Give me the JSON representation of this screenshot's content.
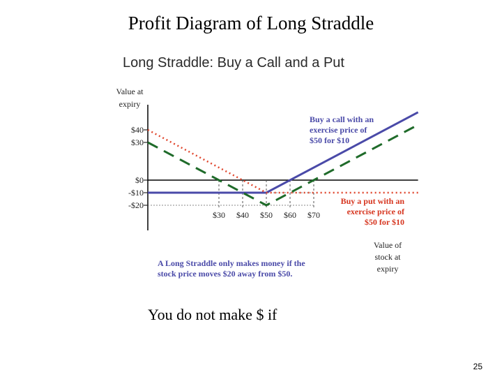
{
  "slide": {
    "title": "Profit Diagram of Long Straddle",
    "footer_text": "You do not make $ if",
    "page_number": "25"
  },
  "chart_data": {
    "type": "line",
    "title": "Long Straddle: Buy a Call and a Put",
    "ylabel": "Value at expiry",
    "xlabel": "Value of stock at expiry",
    "y_ticks": [
      {
        "value": 40,
        "label": "$40"
      },
      {
        "value": 30,
        "label": "$30"
      },
      {
        "value": 0,
        "label": "$0"
      },
      {
        "value": -10,
        "label": "-$10"
      },
      {
        "value": -20,
        "label": "-$20"
      }
    ],
    "x_ticks": [
      {
        "value": 30,
        "label": "$30"
      },
      {
        "value": 40,
        "label": "$40"
      },
      {
        "value": 50,
        "label": "$50"
      },
      {
        "value": 60,
        "label": "$60"
      },
      {
        "value": 70,
        "label": "$70"
      }
    ],
    "xlim": [
      0,
      114
    ],
    "ylim": [
      -40,
      60
    ],
    "series": [
      {
        "id": "call",
        "color": "#4a4aa8",
        "style": "solid",
        "points": [
          [
            0,
            -10
          ],
          [
            50,
            -10
          ],
          [
            114,
            54
          ]
        ]
      },
      {
        "id": "put",
        "color": "#e0472e",
        "style": "dotted",
        "points": [
          [
            0,
            40
          ],
          [
            50,
            -10
          ],
          [
            114,
            -10
          ]
        ]
      },
      {
        "id": "straddle",
        "color": "#1f6b2a",
        "style": "dashed",
        "points": [
          [
            0,
            30
          ],
          [
            50,
            -20
          ],
          [
            114,
            44
          ]
        ]
      }
    ],
    "annotations": [
      {
        "id": "call-note",
        "color": "#4a4aa8",
        "lines": [
          "Buy a call with an",
          "exercise price of",
          "$50 for $10"
        ]
      },
      {
        "id": "put-note",
        "color": "#d6351f",
        "lines": [
          "Buy a put with an",
          "exercise price of",
          "$50 for $10"
        ]
      },
      {
        "id": "straddle-note",
        "color": "#4a4aa8",
        "lines": [
          "A Long Straddle only makes money if the",
          "stock price moves  $20 away from $50."
        ]
      }
    ],
    "ylabel_lines": [
      "Value at",
      "expiry"
    ],
    "xlabel_lines": [
      "Value of",
      "stock at",
      "expiry"
    ],
    "grid": false
  }
}
